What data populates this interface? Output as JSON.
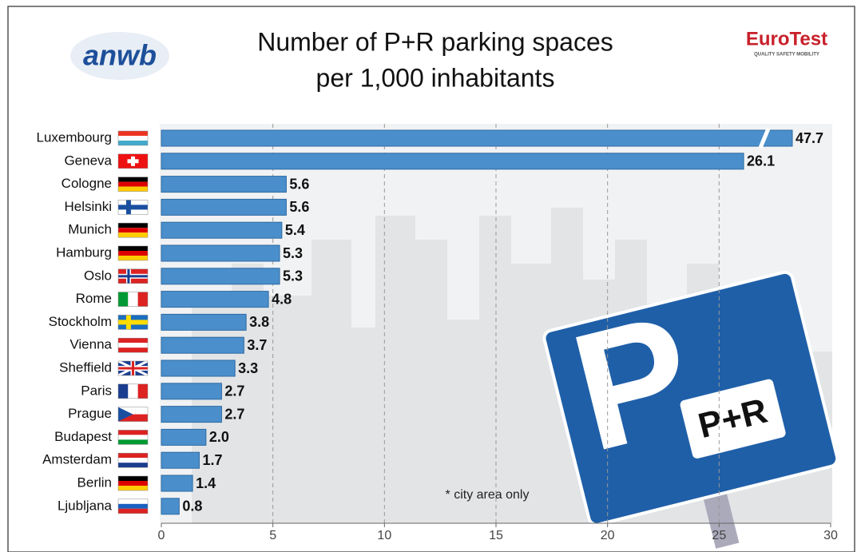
{
  "chart_data": {
    "type": "bar",
    "orientation": "horizontal",
    "title": "Number of P+R parking spaces",
    "subtitle": "per 1,000 inhabitants",
    "source_logo": "anwb",
    "partner_logo": "EuroTest",
    "partner_tagline": "QUALITY SAFETY MOBILITY",
    "annotation": "* city area only",
    "sign": {
      "letter": "P",
      "label": "P+R"
    },
    "categories": [
      "Luxembourg",
      "Geneva",
      "Cologne",
      "Helsinki",
      "Munich",
      "Hamburg",
      "Oslo",
      "Rome",
      "Stockholm",
      "Vienna",
      "Sheffield",
      "Paris",
      "Prague",
      "Budapest",
      "Amsterdam",
      "Berlin",
      "Ljubljana"
    ],
    "values": [
      47.7,
      26.1,
      5.6,
      5.6,
      5.4,
      5.3,
      5.3,
      4.8,
      3.8,
      3.7,
      3.3,
      2.7,
      2.7,
      2.0,
      1.7,
      1.4,
      0.8
    ],
    "value_labels": [
      "47.7",
      "26.1",
      "5.6",
      "5.6",
      "5.4",
      "5.3",
      "5.3",
      "4.8",
      "3.8",
      "3.7",
      "3.3",
      "2.7",
      "2.7",
      "2.0",
      "1.7",
      "1.4",
      "0.8"
    ],
    "color": "#4a8fcb",
    "xlim": [
      0,
      30
    ],
    "xticks": [
      0,
      5,
      10,
      15,
      20,
      25,
      30
    ],
    "grid": true
  }
}
